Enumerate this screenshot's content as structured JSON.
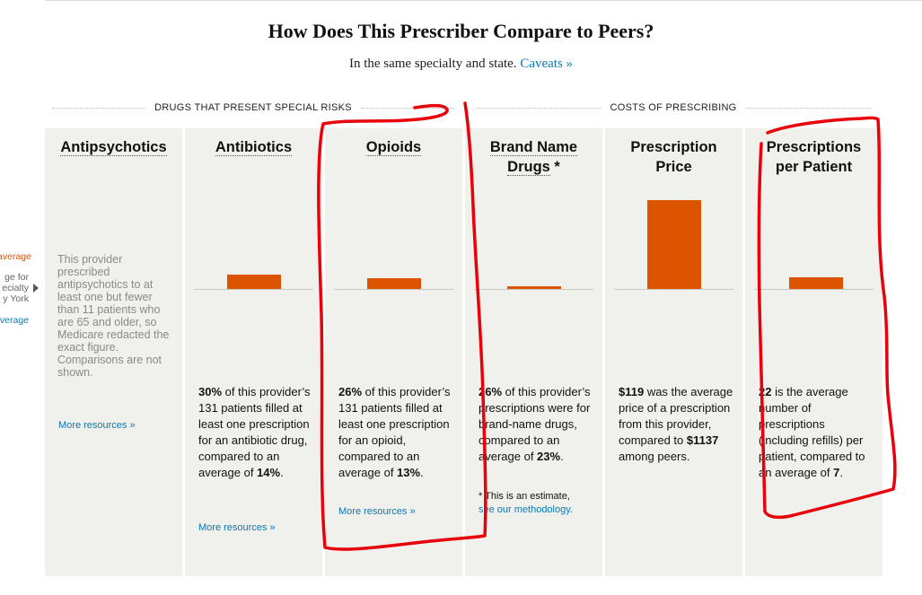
{
  "header": {
    "title": "How Does This Prescriber Compare to Peers?",
    "subtitle": "In the same specialty and state.",
    "caveats_link": "Caveats »"
  },
  "groups": {
    "risks": "DRUGS THAT PRESENT SPECIAL RISKS",
    "costs": "COSTS OF PRESCRIBING"
  },
  "legend": {
    "provider_avg": "average",
    "peer_line1": "ge for",
    "peer_line2": "ecialty",
    "peer_line3": "y York",
    "peer_avg": "verage"
  },
  "colors": {
    "bar": "#dd5400",
    "link": "#0b7ab3",
    "panel_bg": "#f0f0ec",
    "annotation": "#e8000b"
  },
  "panels": {
    "antipsychotics": {
      "title": "Antipsychotics",
      "redacted_text": "This provider prescribed antipsychotics to at least one but fewer than 11 patients who are 65 and older, so Medicare redacted the exact figure. Comparisons are not shown.",
      "more": "More resources »"
    },
    "antibiotics": {
      "title": "Antibiotics",
      "value": "30%",
      "text_a": " of this provider’s 131 patients filled at least one prescription for an antibiotic drug, compared to an average of ",
      "peer": "14%",
      "text_b": ".",
      "more": "More resources »"
    },
    "opioids": {
      "title": "Opioids",
      "value": "26%",
      "text_a": " of this provider’s 131 patients filled at least one prescription for an opioid, compared to an average of ",
      "peer": "13%",
      "text_b": ".",
      "more": "More resources »"
    },
    "brand": {
      "title_line1": "Brand Name",
      "title_line2": "Drugs",
      "title_star": " *",
      "value": "26%",
      "text_a": " of this provider’s prescriptions were for brand-name drugs, compared to an average of ",
      "peer": "23%",
      "text_b": ".",
      "note_star": "* ",
      "note_text": "This is an estimate,",
      "note_link": "see our methodology."
    },
    "price": {
      "title_line1": "Prescription",
      "title_line2": "Price",
      "value": "$119",
      "text_a": " was the average price of a prescription from this provider, compared to ",
      "peer": "$1137",
      "text_b": " among peers."
    },
    "per_patient": {
      "title_line1": "Prescriptions",
      "title_line2": "per Patient",
      "value": "22",
      "text_a": " is the average number of prescriptions (including refills) per patient, compared to an average of ",
      "peer": "7",
      "text_b": "."
    }
  }
}
